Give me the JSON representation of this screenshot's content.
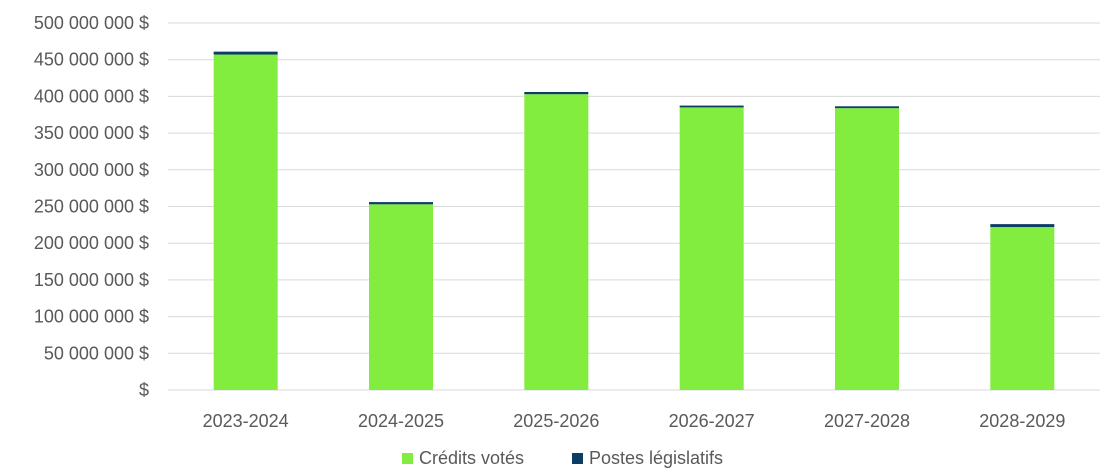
{
  "chart_data": {
    "type": "bar",
    "stacked": true,
    "categories": [
      "2023-2024",
      "2024-2025",
      "2025-2026",
      "2026-2027",
      "2027-2028",
      "2028-2029"
    ],
    "series": [
      {
        "name": "Crédits votés",
        "color": "#82ed3e",
        "values": [
          457000000,
          253000000,
          403000000,
          385000000,
          384000000,
          222000000
        ]
      },
      {
        "name": "Postes législatifs",
        "color": "#0b3d66",
        "values": [
          4000000,
          3000000,
          3000000,
          2500000,
          2500000,
          4000000
        ]
      }
    ],
    "ylim": [
      0,
      500000000
    ],
    "yticks": [
      {
        "value": 0,
        "label": "$"
      },
      {
        "value": 50000000,
        "label": "50 000 000 $"
      },
      {
        "value": 100000000,
        "label": "100 000 000 $"
      },
      {
        "value": 150000000,
        "label": "150 000 000 $"
      },
      {
        "value": 200000000,
        "label": "200 000 000 $"
      },
      {
        "value": 250000000,
        "label": "250 000 000 $"
      },
      {
        "value": 300000000,
        "label": "300 000 000 $"
      },
      {
        "value": 350000000,
        "label": "350 000 000 $"
      },
      {
        "value": 400000000,
        "label": "400 000 000 $"
      },
      {
        "value": 450000000,
        "label": "450 000 000 $"
      },
      {
        "value": 500000000,
        "label": "500 000 000 $"
      }
    ],
    "grid": true,
    "legend": "bottom"
  }
}
